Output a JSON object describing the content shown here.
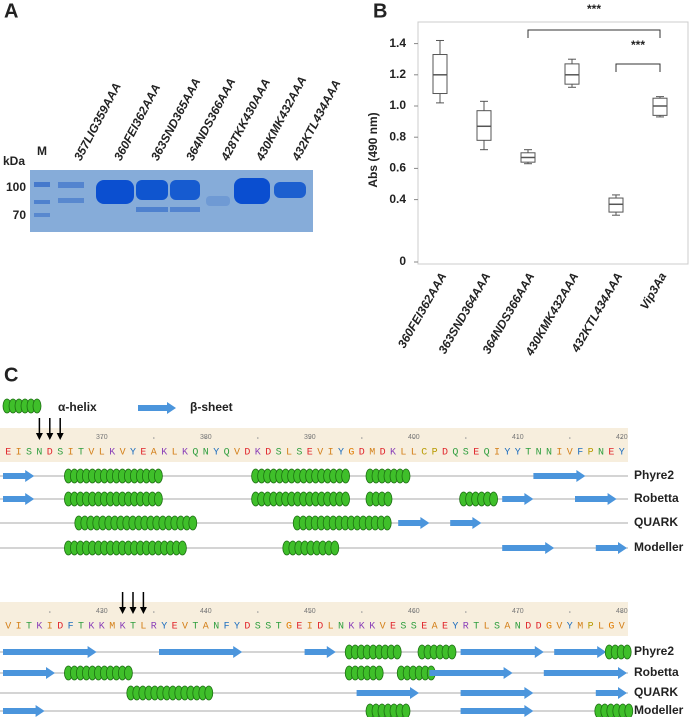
{
  "panel_a": {
    "label": "A",
    "marker": "M",
    "unit": "kDa",
    "sizes": [
      100,
      70
    ],
    "lanes": [
      "357LIG359AAA",
      "360FEI362AAA",
      "363SND365AAA",
      "364NDS366AAA",
      "428TKK430AAA",
      "430KMK432AAA",
      "432KTL434AAA"
    ]
  },
  "chart_data": {
    "type": "box",
    "label": "B",
    "y_label": "Abs (490 nm)",
    "categories": [
      "360FEI362AAA",
      "363SND364AAA",
      "364NDS366AAA",
      "430KMK432AAA",
      "432KTL434AAA",
      "Vip3Aa"
    ],
    "min": [
      1.02,
      0.72,
      0.63,
      1.12,
      0.3,
      0.93
    ],
    "q1": [
      1.08,
      0.78,
      0.64,
      1.14,
      0.32,
      0.94
    ],
    "median": [
      1.2,
      0.87,
      0.67,
      1.2,
      0.37,
      1.0
    ],
    "q3": [
      1.33,
      0.97,
      0.7,
      1.27,
      0.41,
      1.05
    ],
    "max": [
      1.42,
      1.03,
      0.72,
      1.3,
      0.43,
      1.06
    ],
    "color": "#555555",
    "ylim": [
      0,
      1.5
    ],
    "yticks": [
      0,
      0.4,
      0.6,
      0.8,
      {
        "value": 1,
        "label": "1.0"
      },
      1.2,
      1.4
    ],
    "annotations": [
      "***",
      "***"
    ]
  },
  "panel_c": {
    "label": "C",
    "legend": [
      "α-helix",
      "β-sheet"
    ],
    "methods": [
      "Phyre2",
      "Robetta",
      "QUARK",
      "Modeller"
    ],
    "rows": [
      {
        "ruler": [
          370,
          380,
          390,
          400,
          410,
          420
        ],
        "sequence": [
          "E",
          "I",
          "S",
          "N",
          "D",
          "S",
          "I",
          "T",
          "V",
          "L",
          "K",
          "V",
          "Y",
          "E",
          "A",
          "K",
          "L",
          "K",
          "Q",
          "N",
          "Y",
          "Q",
          "V",
          "D",
          "K",
          "D",
          "S",
          "L",
          "S",
          "E",
          "V",
          "I",
          "Y",
          "G",
          "D",
          "M",
          "D",
          "K",
          "L",
          "L",
          "C",
          "P",
          "D",
          "Q",
          "S",
          "E",
          "Q",
          "I",
          "Y",
          "Y",
          "T",
          "N",
          "N",
          "I",
          "V",
          "F",
          "P",
          "N",
          "E",
          "Y"
        ]
      },
      {
        "ruler": [
          430,
          440,
          450,
          460,
          470,
          480
        ],
        "sequence": [
          "V",
          "I",
          "T",
          "K",
          "I",
          "D",
          "F",
          "T",
          "K",
          "K",
          "M",
          "K",
          "T",
          "L",
          "R",
          "Y",
          "E",
          "V",
          "T",
          "A",
          "N",
          "F",
          "Y",
          "D",
          "S",
          "S",
          "T",
          "G",
          "E",
          "I",
          "D",
          "L",
          "N",
          "K",
          "K",
          "K",
          "V",
          "E",
          "S",
          "S",
          "E",
          "A",
          "E",
          "Y",
          "R",
          "T",
          "L",
          "S",
          "A",
          "N",
          "D",
          "D",
          "G",
          "V",
          "Y",
          "M",
          "P",
          "L",
          "G",
          "V"
        ]
      }
    ]
  }
}
